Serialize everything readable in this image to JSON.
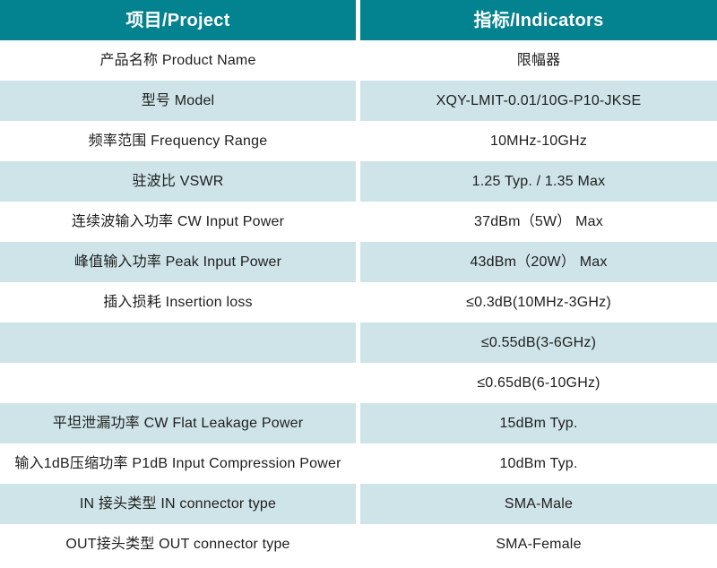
{
  "colors": {
    "header_bg": "#03828F",
    "header_text": "#ffffff",
    "alt_row_bg": "#cfe4e8",
    "row_bg": "#ffffff",
    "body_text": "#1e1e1e",
    "column_divider": "#ffffff"
  },
  "table": {
    "header": {
      "project": "项目/Project",
      "indicator": "指标/Indicators"
    },
    "rows": [
      {
        "project": "产品名称 Product Name",
        "indicator": "限幅器"
      },
      {
        "project": "型号 Model",
        "indicator": "XQY-LMIT-0.01/10G-P10-JKSE"
      },
      {
        "project": "频率范围 Frequency Range",
        "indicator": "10MHz-10GHz"
      },
      {
        "project": "驻波比 VSWR",
        "indicator": "1.25 Typ. / 1.35 Max"
      },
      {
        "project": "连续波输入功率 CW Input Power",
        "indicator": "37dBm（5W） Max"
      },
      {
        "project": "峰值输入功率 Peak Input Power",
        "indicator": "43dBm（20W） Max"
      },
      {
        "project": "插入损耗 Insertion loss",
        "indicator": "≤0.3dB(10MHz-3GHz)"
      },
      {
        "project": "",
        "indicator": "≤0.55dB(3-6GHz)"
      },
      {
        "project": "",
        "indicator": "≤0.65dB(6-10GHz)"
      },
      {
        "project": "平坦泄漏功率 CW Flat Leakage Power",
        "indicator": "15dBm Typ."
      },
      {
        "project": "输入1dB压缩功率 P1dB Input Compression Power",
        "indicator": "10dBm Typ."
      },
      {
        "project": "IN 接头类型 IN connector type",
        "indicator": "SMA-Male"
      },
      {
        "project": "OUT接头类型 OUT connector type",
        "indicator": "SMA-Female"
      }
    ]
  }
}
